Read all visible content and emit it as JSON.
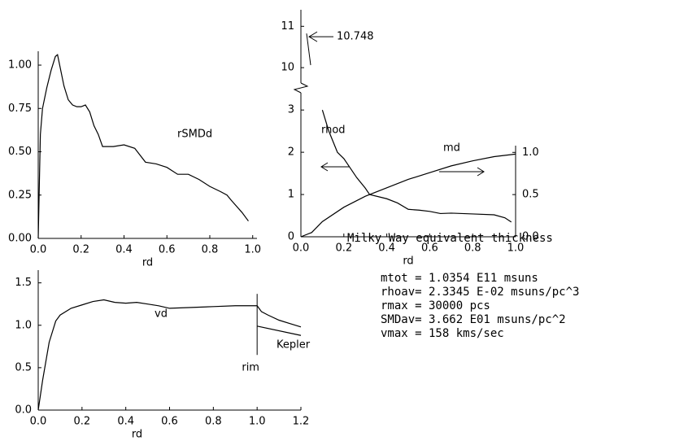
{
  "chart_data": [
    {
      "type": "line",
      "xlabel": "rd",
      "xlim": [
        0,
        1.02
      ],
      "ylim": [
        0,
        1.08
      ],
      "xticks": [
        {
          "value": 0,
          "label": "0.0"
        },
        0.2,
        0.4,
        0.6,
        0.8,
        {
          "value": 1,
          "label": "1.0"
        }
      ],
      "yticks": [
        {
          "value": 0,
          "label": "0.00"
        },
        0.25,
        {
          "value": 0.5,
          "label": "0.50"
        },
        0.75,
        {
          "value": 1,
          "label": "1.00"
        }
      ],
      "series": [
        {
          "name": "rSMDd",
          "color": "#000000",
          "x": [
            0,
            0.01,
            0.02,
            0.04,
            0.06,
            0.08,
            0.09,
            0.1,
            0.12,
            0.14,
            0.16,
            0.18,
            0.2,
            0.22,
            0.24,
            0.26,
            0.28,
            0.3,
            0.35,
            0.4,
            0.45,
            0.5,
            0.55,
            0.6,
            0.65,
            0.7,
            0.75,
            0.8,
            0.85,
            0.88,
            0.9,
            0.95,
            0.98
          ],
          "values": [
            0,
            0.6,
            0.75,
            0.87,
            0.97,
            1.05,
            1.06,
            1.0,
            0.88,
            0.8,
            0.77,
            0.76,
            0.76,
            0.77,
            0.73,
            0.65,
            0.6,
            0.53,
            0.53,
            0.54,
            0.52,
            0.44,
            0.43,
            0.41,
            0.37,
            0.37,
            0.34,
            0.3,
            0.27,
            0.25,
            0.22,
            0.15,
            0.1
          ]
        }
      ]
    },
    {
      "type": "line",
      "xlabel": "rd",
      "xlim": [
        0,
        1
      ],
      "ylim": [
        0,
        3.1
      ],
      "y2lim": [
        0,
        1.08
      ],
      "upper_ylim": [
        9.55,
        11.4
      ],
      "upper_yticks": [
        10,
        11
      ],
      "annotation": 10.748,
      "xticks": [
        {
          "value": 0,
          "label": "0.0"
        },
        0.2,
        0.4,
        0.6,
        0.8,
        {
          "value": 1,
          "label": "1.0"
        }
      ],
      "yticks": [
        0,
        1,
        2,
        3
      ],
      "y2ticks": [
        {
          "value": 0,
          "label": "0.0"
        },
        0.5,
        {
          "value": 1,
          "label": "1.0"
        }
      ],
      "series": [
        {
          "name": "rhod",
          "color": "#000000",
          "x": [
            0.1,
            0.13,
            0.17,
            0.2,
            0.22,
            0.26,
            0.3,
            0.32,
            0.4,
            0.45,
            0.5,
            0.55,
            0.6,
            0.65,
            0.7,
            0.8,
            0.9,
            0.95,
            0.98
          ],
          "values": [
            3.0,
            2.5,
            2.0,
            1.85,
            1.7,
            1.4,
            1.15,
            1.0,
            0.9,
            0.8,
            0.65,
            0.63,
            0.6,
            0.55,
            0.56,
            0.54,
            0.52,
            0.45,
            0.35
          ]
        },
        {
          "name": "md",
          "color": "#000000",
          "axis": "y2",
          "x": [
            0,
            0.05,
            0.1,
            0.2,
            0.3,
            0.4,
            0.5,
            0.6,
            0.7,
            0.8,
            0.9,
            1.0
          ],
          "values": [
            0,
            0.05,
            0.18,
            0.35,
            0.48,
            0.58,
            0.68,
            0.76,
            0.84,
            0.9,
            0.95,
            0.98
          ]
        }
      ]
    },
    {
      "type": "line",
      "xlabel": "rd",
      "xlim": [
        0,
        1.2
      ],
      "ylim": [
        0,
        1.65
      ],
      "rim": "rim",
      "xticks": [
        {
          "value": 0,
          "label": "0.0"
        },
        0.2,
        0.4,
        0.6,
        0.8,
        {
          "value": 1,
          "label": "1.0"
        },
        1.2
      ],
      "yticks": [
        {
          "value": 0,
          "label": "0.0"
        },
        0.5,
        {
          "value": 1,
          "label": "1.0"
        },
        1.5
      ],
      "series": [
        {
          "name": "vd",
          "color": "#000000",
          "x": [
            0,
            0.02,
            0.05,
            0.08,
            0.1,
            0.15,
            0.2,
            0.25,
            0.3,
            0.35,
            0.4,
            0.45,
            0.5,
            0.55,
            0.6,
            0.7,
            0.8,
            0.9,
            1.0,
            1.02,
            1.05,
            1.1,
            1.15,
            1.2
          ],
          "values": [
            0,
            0.35,
            0.8,
            1.05,
            1.12,
            1.2,
            1.24,
            1.28,
            1.3,
            1.27,
            1.26,
            1.27,
            1.25,
            1.23,
            1.2,
            1.21,
            1.22,
            1.23,
            1.23,
            1.16,
            1.12,
            1.06,
            1.02,
            0.98
          ]
        },
        {
          "name": "Kepler",
          "color": "#000000",
          "x": [
            1.0,
            1.2
          ],
          "values": [
            0.99,
            0.88
          ]
        }
      ]
    }
  ],
  "panel_text": {
    "title": "Milky Way equivalent thickness",
    "lines": [
      "mtot = 1.0354 E11 msuns",
      "rhoav= 2.3345 E-02 msuns/pc^3",
      "rmax = 30000 pcs",
      "SMDav= 3.662 E01 msuns/pc^2",
      "vmax = 158 kms/sec"
    ]
  }
}
